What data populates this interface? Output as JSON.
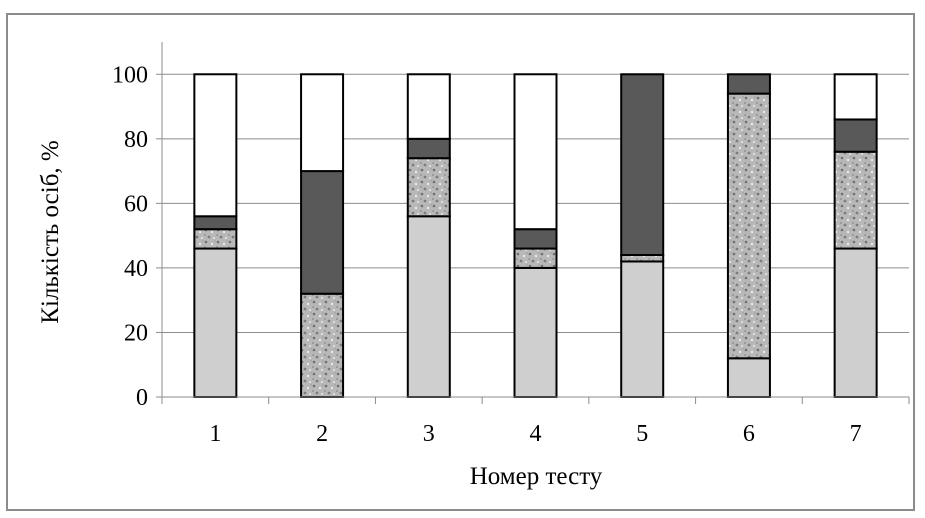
{
  "chart_data": {
    "type": "bar",
    "stacked": true,
    "title": "",
    "xlabel": "Номер тесту",
    "ylabel": "Кількість осіб, %",
    "categories": [
      "1",
      "2",
      "3",
      "4",
      "5",
      "6",
      "7"
    ],
    "ylim": [
      0,
      110
    ],
    "yticks": [
      "0",
      "20",
      "40",
      "60",
      "80",
      "100"
    ],
    "grid": true,
    "legend": "none",
    "series": [
      {
        "values": [
          46,
          0,
          56,
          40,
          42,
          12,
          46
        ],
        "color": "#cfcfcf",
        "pattern": "solid-light"
      },
      {
        "values": [
          6,
          32,
          18,
          6,
          2,
          82,
          30
        ],
        "color": "#b4b4b4",
        "pattern": "speckled"
      },
      {
        "values": [
          4,
          38,
          6,
          6,
          56,
          6,
          10
        ],
        "color": "#595959",
        "pattern": "solid-dark"
      },
      {
        "values": [
          44,
          30,
          20,
          48,
          0,
          0,
          14
        ],
        "color": "#ffffff",
        "pattern": "solid-white"
      }
    ]
  }
}
